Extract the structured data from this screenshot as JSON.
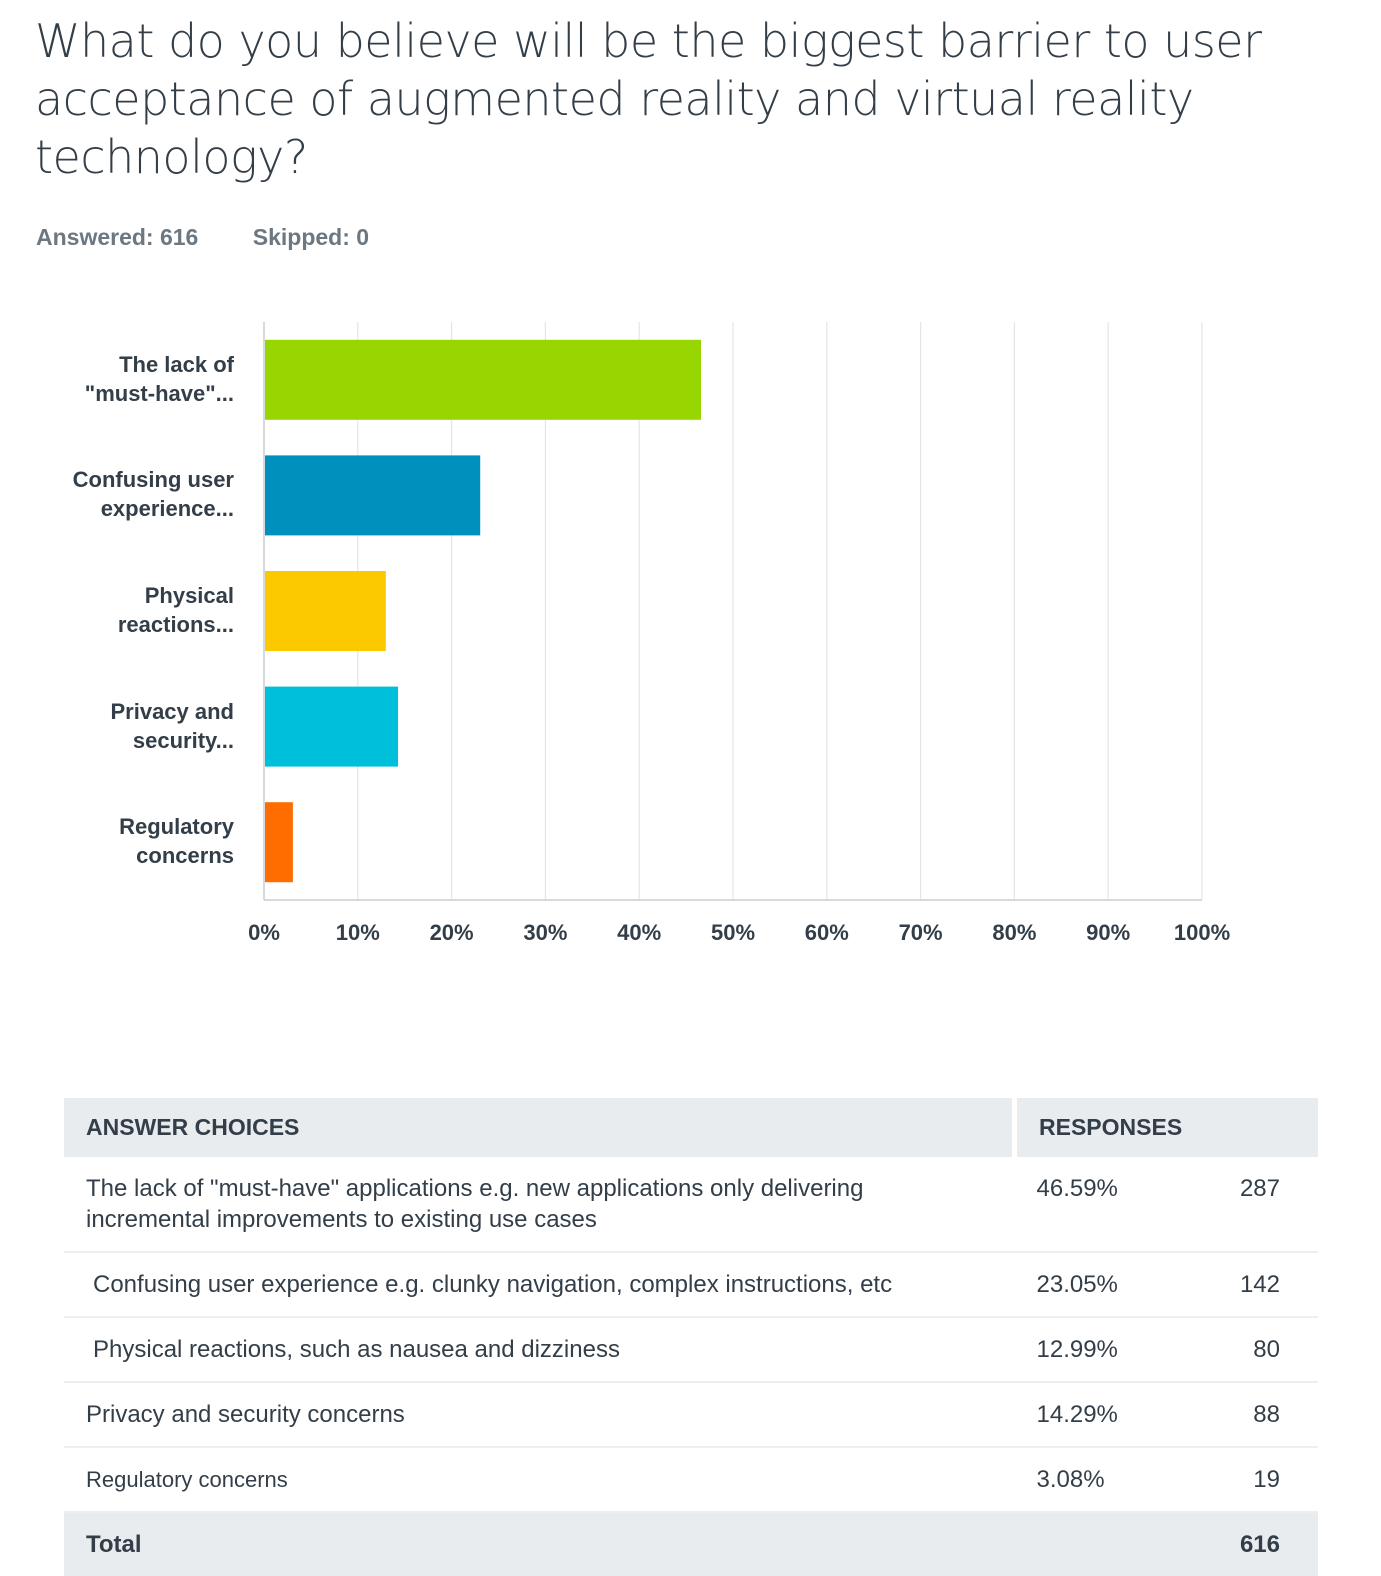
{
  "question": "What do you believe will be the biggest barrier to user acceptance of augmented reality and virtual reality technology?",
  "answered_label": "Answered: 616",
  "skipped_label": "Skipped: 0",
  "chart_data": {
    "type": "bar",
    "orientation": "horizontal",
    "categories": [
      "The lack of \"must-have\"...",
      "Confusing user experience...",
      "Physical reactions...",
      "Privacy and security...",
      "Regulatory concerns"
    ],
    "category_lines": [
      [
        "The lack of",
        "\"must-have\"..."
      ],
      [
        "Confusing user",
        "experience..."
      ],
      [
        "Physical",
        "reactions..."
      ],
      [
        "Privacy and",
        "security..."
      ],
      [
        "Regulatory",
        "concerns"
      ]
    ],
    "values": [
      46.59,
      23.05,
      12.99,
      14.29,
      3.08
    ],
    "colors": [
      "#97d600",
      "#0090be",
      "#fcc800",
      "#00bfda",
      "#ff6c00"
    ],
    "xlim": [
      0,
      100
    ],
    "ticks": [
      0,
      10,
      20,
      30,
      40,
      50,
      60,
      70,
      80,
      90,
      100
    ],
    "tick_labels": [
      "0%",
      "10%",
      "20%",
      "30%",
      "40%",
      "50%",
      "60%",
      "70%",
      "80%",
      "90%",
      "100%"
    ],
    "grid": true,
    "xlabel": "",
    "ylabel": ""
  },
  "table": {
    "headers": [
      "ANSWER CHOICES",
      "RESPONSES"
    ],
    "rows": [
      {
        "choice": "The lack of \"must-have\" applications e.g. new applications only delivering incremental improvements to existing use cases",
        "percent": "46.59%",
        "count": "287"
      },
      {
        "choice": "Confusing user experience e.g. clunky navigation, complex instructions, etc",
        "percent": "23.05%",
        "count": "142"
      },
      {
        "choice": "Physical reactions, such as nausea and dizziness",
        "percent": "12.99%",
        "count": "80"
      },
      {
        "choice": "Privacy and security concerns",
        "percent": "14.29%",
        "count": "88"
      },
      {
        "choice": "Regulatory concerns",
        "percent": "3.08%",
        "count": "19"
      }
    ],
    "total_label": "Total",
    "total_count": "616"
  }
}
